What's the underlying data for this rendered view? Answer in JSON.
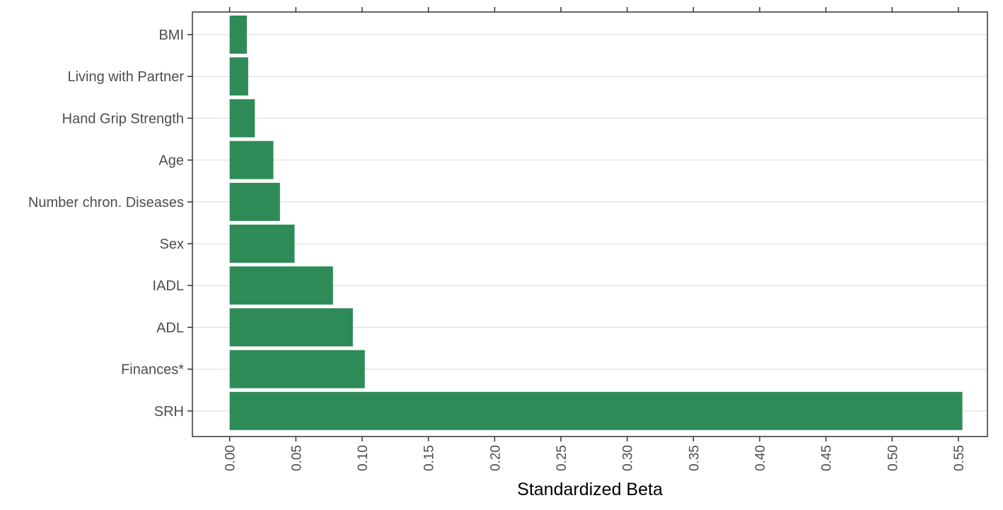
{
  "colors": {
    "bar": "#2e8b57",
    "grid": "#d9d9d9",
    "frame": "#333333",
    "text": "#4d4d4d"
  },
  "chart_data": {
    "type": "bar",
    "orientation": "horizontal",
    "categories": [
      "BMI",
      "Living with Partner",
      "Hand Grip Strength",
      "Age",
      "Number chron. Diseases",
      "Sex",
      "IADL",
      "ADL",
      "Finances*",
      "SRH"
    ],
    "values": [
      0.013,
      0.014,
      0.019,
      0.033,
      0.038,
      0.049,
      0.078,
      0.093,
      0.102,
      0.553
    ],
    "xlabel": "Standardized Beta",
    "ylabel": "",
    "xlim": [
      -0.0281,
      0.5719
    ],
    "xticks": [
      0,
      0.05,
      0.1,
      0.15,
      0.2,
      0.25,
      0.3,
      0.35,
      0.4,
      0.45,
      0.5,
      0.55
    ],
    "xtick_labels": [
      "0.00",
      "0.05",
      "0.10",
      "0.15",
      "0.20",
      "0.25",
      "0.30",
      "0.35",
      "0.40",
      "0.45",
      "0.50",
      "0.55"
    ],
    "grid": "horizontal-major",
    "legend": "none"
  }
}
